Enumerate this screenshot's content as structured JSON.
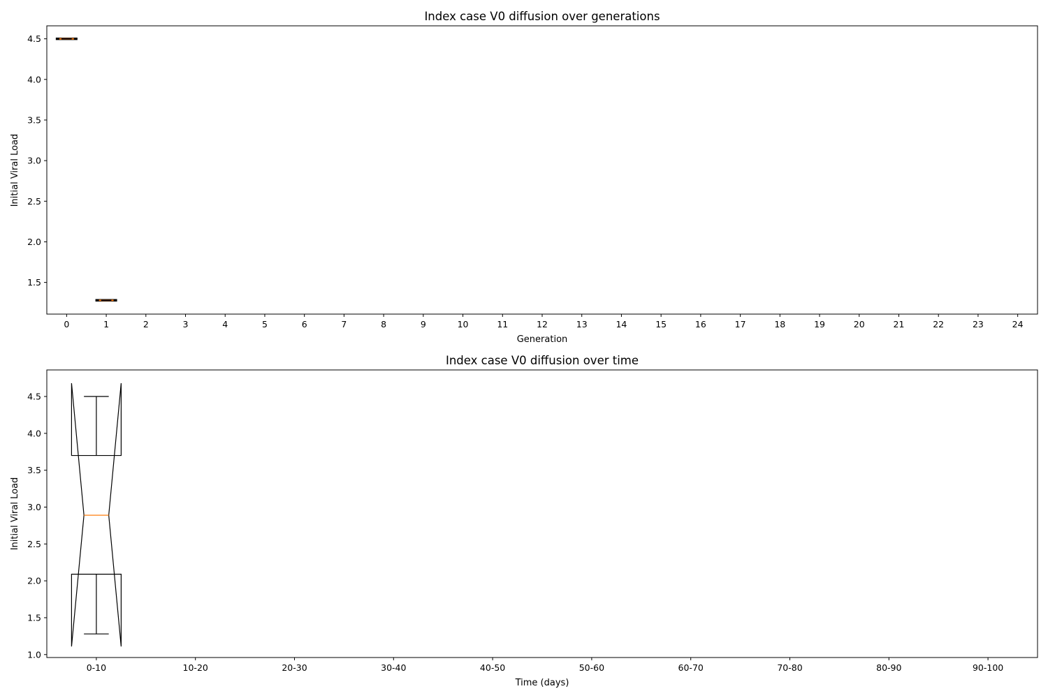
{
  "chart_data": [
    {
      "type": "boxplot",
      "title": "Index case V0 diffusion over generations",
      "xlabel": "Generation",
      "ylabel": "Initial Viral Load",
      "categories": [
        "0",
        "1",
        "2",
        "3",
        "4",
        "5",
        "6",
        "7",
        "8",
        "9",
        "10",
        "11",
        "12",
        "13",
        "14",
        "15",
        "16",
        "17",
        "18",
        "19",
        "20",
        "21",
        "22",
        "23",
        "24"
      ],
      "ylim": [
        1.11,
        4.66
      ],
      "yticks": [
        1.5,
        2.0,
        2.5,
        3.0,
        3.5,
        4.0,
        4.5
      ],
      "notched": false,
      "boxes": [
        {
          "category": "0",
          "whislo": 4.5,
          "q1": 4.5,
          "med": 4.5,
          "q3": 4.5,
          "whishi": 4.5
        },
        {
          "category": "1",
          "whislo": 1.28,
          "q1": 1.28,
          "med": 1.28,
          "q3": 1.28,
          "whishi": 1.28
        }
      ],
      "colors": {
        "box": "#000000",
        "median": "#ff7f0e"
      }
    },
    {
      "type": "boxplot",
      "title": "Index case V0 diffusion over time",
      "xlabel": "Time (days)",
      "ylabel": "Initial Viral Load",
      "categories": [
        "0-10",
        "10-20",
        "20-30",
        "30-40",
        "40-50",
        "50-60",
        "60-70",
        "70-80",
        "80-90",
        "90-100"
      ],
      "ylim": [
        0.96,
        4.86
      ],
      "yticks": [
        1.0,
        1.5,
        2.0,
        2.5,
        3.0,
        3.5,
        4.0,
        4.5
      ],
      "notched": true,
      "boxes": [
        {
          "category": "0-10",
          "whislo": 1.28,
          "q1": 2.09,
          "med": 2.89,
          "q3": 3.7,
          "whishi": 4.5,
          "notch_lo": 1.11,
          "notch_hi": 4.68
        }
      ],
      "colors": {
        "box": "#000000",
        "median": "#ff7f0e"
      }
    }
  ]
}
